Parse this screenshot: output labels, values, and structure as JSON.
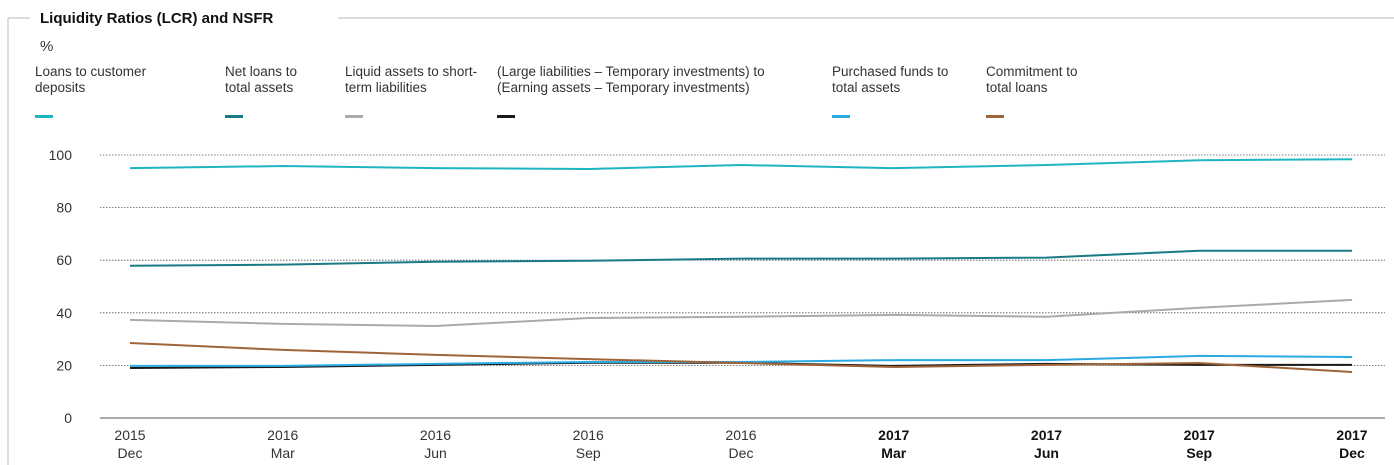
{
  "chart_data": {
    "type": "line",
    "title": "Liquidity Ratios (LCR) and NSFR",
    "y_unit": "%",
    "categories": [
      [
        "2015",
        "Dec"
      ],
      [
        "2016",
        "Mar"
      ],
      [
        "2016",
        "Jun"
      ],
      [
        "2016",
        "Sep"
      ],
      [
        "2016",
        "Dec"
      ],
      [
        "2017",
        "Mar"
      ],
      [
        "2017",
        "Jun"
      ],
      [
        "2017",
        "Sep"
      ],
      [
        "2017",
        "Dec"
      ]
    ],
    "categories_bold": [
      false,
      false,
      false,
      false,
      false,
      true,
      true,
      true,
      true
    ],
    "ylim": [
      0,
      100
    ],
    "yticks": [
      0,
      20,
      40,
      60,
      80,
      100
    ],
    "grid": true,
    "series": [
      {
        "name": "Loans to customer deposits",
        "color": "#1fb5c0",
        "values": [
          95.0,
          95.8,
          95.0,
          94.7,
          96.2,
          95.0,
          96.2,
          98.0,
          98.4
        ]
      },
      {
        "name": "Net loans to total assets",
        "color": "#1a7a85",
        "values": [
          57.9,
          58.3,
          59.4,
          59.8,
          60.6,
          60.6,
          61.0,
          63.6,
          63.6
        ]
      },
      {
        "name": "Liquid assets to short-term liabilities",
        "color": "#aaaaaa",
        "values": [
          37.3,
          35.8,
          35.0,
          38.0,
          38.5,
          39.2,
          38.5,
          41.9,
          44.9
        ]
      },
      {
        "name": "(Large liabilities – Temporary investments) to (Earning assets – Temporary investments)",
        "color": "#1a1a1a",
        "values": [
          19.0,
          19.4,
          20.2,
          21.0,
          21.0,
          19.8,
          20.6,
          20.2,
          20.2
        ]
      },
      {
        "name": "Purchased funds to total assets",
        "color": "#29abe2",
        "values": [
          19.8,
          19.8,
          20.6,
          21.3,
          21.3,
          22.0,
          22.0,
          23.6,
          23.2
        ]
      },
      {
        "name": "Commitment to total loans",
        "color": "#a0643a",
        "values": [
          28.5,
          25.9,
          24.0,
          22.4,
          20.9,
          19.4,
          20.2,
          20.9,
          17.5
        ]
      }
    ]
  }
}
